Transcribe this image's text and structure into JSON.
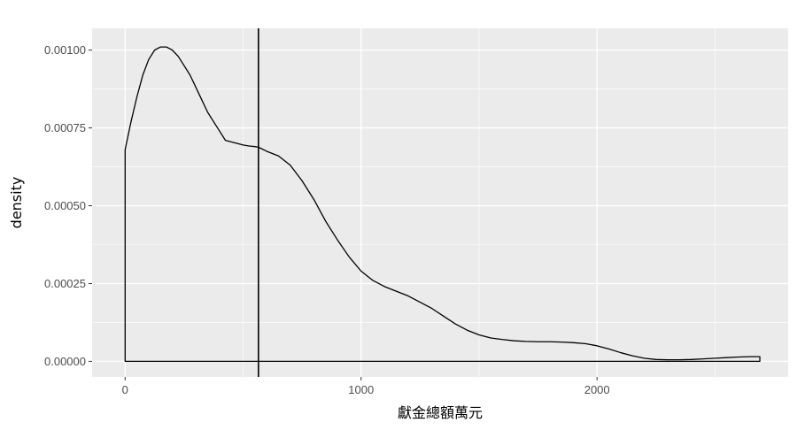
{
  "chart_data": {
    "type": "area",
    "title": "",
    "xlabel": "獻金總額萬元",
    "ylabel": "density",
    "xlim": [
      -140,
      2810
    ],
    "ylim": [
      -5e-05,
      0.00107
    ],
    "x_ticks": [
      0,
      1000,
      2000
    ],
    "x_tick_labels": [
      "0",
      "1000",
      "2000"
    ],
    "y_ticks": [
      0,
      0.00025,
      0.0005,
      0.00075,
      0.001
    ],
    "y_tick_labels": [
      "0.00000",
      "0.00025",
      "0.00050",
      "0.00075",
      "0.00100"
    ],
    "x_minor_ticks": [
      500,
      1500,
      2500
    ],
    "y_minor_ticks": [
      0.000125,
      0.000375,
      0.000625,
      0.000875
    ],
    "grid": true,
    "legend": "none",
    "reference_line_x": 565,
    "series": [
      {
        "x": [
          0,
          25,
          50,
          75,
          100,
          125,
          150,
          175,
          200,
          225,
          250,
          275,
          300,
          325,
          350,
          375,
          400,
          425,
          450,
          475,
          500,
          525,
          550,
          565,
          600,
          650,
          700,
          750,
          800,
          850,
          900,
          950,
          1000,
          1050,
          1100,
          1150,
          1200,
          1250,
          1300,
          1350,
          1400,
          1450,
          1500,
          1550,
          1600,
          1650,
          1700,
          1750,
          1800,
          1850,
          1900,
          1950,
          2000,
          2050,
          2100,
          2150,
          2200,
          2250,
          2300,
          2350,
          2400,
          2450,
          2500,
          2550,
          2600,
          2650,
          2690
        ],
        "y": [
          0.00068,
          0.00077,
          0.00085,
          0.00092,
          0.00097,
          0.001,
          0.00101,
          0.00101,
          0.001,
          0.00098,
          0.00095,
          0.00092,
          0.00088,
          0.00084,
          0.0008,
          0.00077,
          0.00074,
          0.00071,
          0.000705,
          0.0007,
          0.000695,
          0.000692,
          0.00069,
          0.000688,
          0.000675,
          0.00066,
          0.00063,
          0.00058,
          0.00052,
          0.00045,
          0.00039,
          0.000335,
          0.00029,
          0.00026,
          0.00024,
          0.000225,
          0.00021,
          0.00019,
          0.00017,
          0.000145,
          0.00012,
          0.0001,
          8.5e-05,
          7.5e-05,
          7e-05,
          6.6e-05,
          6.4e-05,
          6.3e-05,
          6.3e-05,
          6.2e-05,
          6e-05,
          5.7e-05,
          5e-05,
          4e-05,
          2.8e-05,
          1.8e-05,
          1e-05,
          6e-06,
          5e-06,
          5e-06,
          6e-06,
          8e-06,
          1e-05,
          1.2e-05,
          1.4e-05,
          1.5e-05,
          1.5e-05
        ]
      }
    ]
  }
}
